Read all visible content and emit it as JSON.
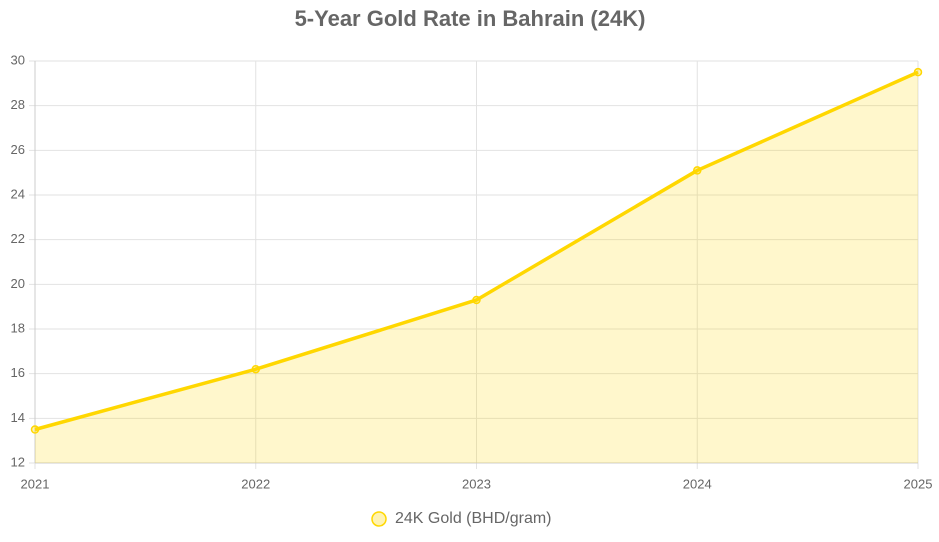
{
  "chart_data": {
    "type": "line",
    "title": "5-Year Gold Rate in Bahrain (24K)",
    "categories": [
      "2021",
      "2022",
      "2023",
      "2024",
      "2025"
    ],
    "series": [
      {
        "name": "24K Gold (BHD/gram)",
        "color": "#ffd700",
        "values": [
          13.5,
          16.2,
          19.3,
          25.1,
          29.5
        ]
      }
    ],
    "fill": true,
    "ylim": [
      12,
      30
    ],
    "yticks": [
      12,
      14,
      16,
      18,
      20,
      22,
      24,
      26,
      28,
      30
    ],
    "grid": true,
    "legend": "bottom"
  }
}
